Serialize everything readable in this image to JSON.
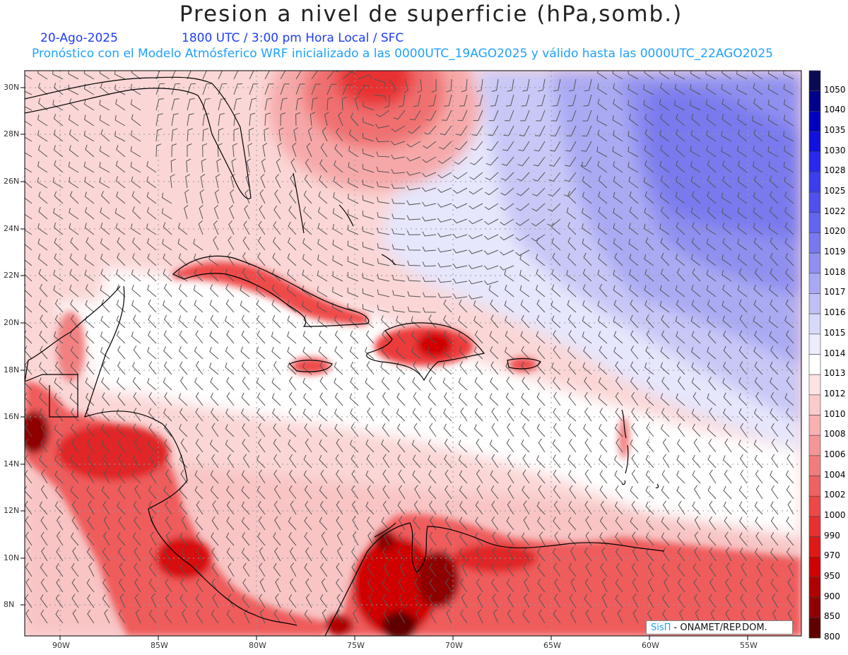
{
  "header": {
    "title": "Presion a nivel de superficie (hPa,somb.)",
    "date": "20-Ago-2025",
    "time_info": "1800 UTC / 3:00 pm Hora Local / SFC",
    "model_info": "Pronóstico con el Modelo Atmósferico WRF inicializado a las 0000UTC_19AGO2025 y válido hasta las  0000UTC_22AGO2025"
  },
  "map": {
    "lat_labels": [
      "30N",
      "28N",
      "26N",
      "24N",
      "22N",
      "20N",
      "18N",
      "16N",
      "14N",
      "12N",
      "10N",
      "8N"
    ],
    "lon_labels": [
      "90W",
      "85W",
      "80W",
      "75W",
      "70W",
      "65W",
      "60W",
      "55W"
    ]
  },
  "colorbar": {
    "levels": [
      "1050",
      "1040",
      "1035",
      "1030",
      "1028",
      "1025",
      "1022",
      "1020",
      "1019",
      "1018",
      "1017",
      "1016",
      "1015",
      "1014",
      "1013",
      "1012",
      "1010",
      "1008",
      "1006",
      "1004",
      "1002",
      "1000",
      "990",
      "970",
      "950",
      "900",
      "850",
      "800"
    ],
    "colors": [
      "#0a0a55",
      "#00008b",
      "#0000c0",
      "#1010e0",
      "#2828f0",
      "#3c3cf0",
      "#5050f0",
      "#6464f0",
      "#7878f0",
      "#9090f0",
      "#a8a8f4",
      "#c0c0f6",
      "#d8d8fa",
      "#ececfd",
      "#ffffff",
      "#fde4e4",
      "#fbcaca",
      "#f8b0b0",
      "#f59696",
      "#f27c7c",
      "#ef6262",
      "#ec4848",
      "#e83030",
      "#e01818",
      "#d00000",
      "#b00000",
      "#900000",
      "#600000"
    ]
  },
  "credit": {
    "logo_text": "SisΠ",
    "org_text": " - ONAMET/REP.DOM."
  }
}
